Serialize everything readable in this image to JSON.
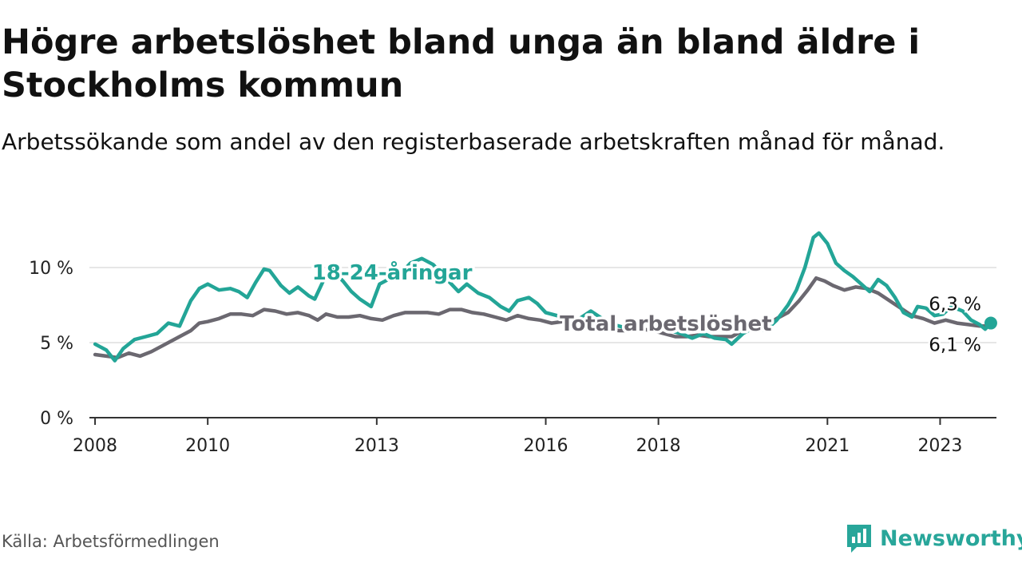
{
  "title": "Högre arbetslöshet bland unga än bland äldre i Stockholms kommun",
  "subtitle": "Arbetssökande som andel av den registerbaserade arbetskraften månad för månad.",
  "source": "Källa: Arbetsförmedlingen",
  "brand": "Newsworthy",
  "colors": {
    "young": "#23a597",
    "total": "#6b6870",
    "axis": "#333333",
    "grid": "#dddddd"
  },
  "chart_data": {
    "type": "line",
    "title": "Högre arbetslöshet bland unga än bland äldre i Stockholms kommun",
    "xlabel": "",
    "ylabel": "",
    "xlim": [
      2007.9,
      2024.0
    ],
    "ylim": [
      0,
      12.5
    ],
    "x_ticks": [
      {
        "value": 2008,
        "label": "2008"
      },
      {
        "value": 2010,
        "label": "2010"
      },
      {
        "value": 2013,
        "label": "2013"
      },
      {
        "value": 2016,
        "label": "2016"
      },
      {
        "value": 2018,
        "label": "2018"
      },
      {
        "value": 2021,
        "label": "2021"
      },
      {
        "value": 2023,
        "label": "2023"
      }
    ],
    "y_ticks": [
      {
        "value": 0,
        "label": "0 %"
      },
      {
        "value": 5,
        "label": "5 %"
      },
      {
        "value": 10,
        "label": "10 %"
      }
    ],
    "series": [
      {
        "name": "18-24-åringar",
        "label": "18-24-åringar",
        "color": "#23a597",
        "end_label": "6,3 %",
        "points": [
          [
            2008.0,
            4.9
          ],
          [
            2008.2,
            4.5
          ],
          [
            2008.35,
            3.8
          ],
          [
            2008.5,
            4.6
          ],
          [
            2008.7,
            5.2
          ],
          [
            2008.9,
            5.4
          ],
          [
            2009.1,
            5.6
          ],
          [
            2009.3,
            6.3
          ],
          [
            2009.5,
            6.1
          ],
          [
            2009.7,
            7.8
          ],
          [
            2009.85,
            8.6
          ],
          [
            2010.0,
            8.9
          ],
          [
            2010.2,
            8.5
          ],
          [
            2010.4,
            8.6
          ],
          [
            2010.55,
            8.4
          ],
          [
            2010.7,
            8.0
          ],
          [
            2010.85,
            9.0
          ],
          [
            2011.0,
            9.9
          ],
          [
            2011.1,
            9.8
          ],
          [
            2011.3,
            8.8
          ],
          [
            2011.45,
            8.3
          ],
          [
            2011.6,
            8.7
          ],
          [
            2011.8,
            8.1
          ],
          [
            2011.9,
            7.9
          ],
          [
            2012.05,
            9.1
          ],
          [
            2012.2,
            9.9
          ],
          [
            2012.4,
            9.1
          ],
          [
            2012.55,
            8.4
          ],
          [
            2012.7,
            7.9
          ],
          [
            2012.9,
            7.4
          ],
          [
            2013.05,
            8.9
          ],
          [
            2013.25,
            9.3
          ],
          [
            2013.45,
            9.7
          ],
          [
            2013.6,
            10.3
          ],
          [
            2013.8,
            10.6
          ],
          [
            2014.0,
            10.2
          ],
          [
            2014.2,
            9.4
          ],
          [
            2014.45,
            8.4
          ],
          [
            2014.6,
            8.9
          ],
          [
            2014.8,
            8.3
          ],
          [
            2015.0,
            8.0
          ],
          [
            2015.2,
            7.4
          ],
          [
            2015.35,
            7.1
          ],
          [
            2015.5,
            7.8
          ],
          [
            2015.7,
            8.0
          ],
          [
            2015.85,
            7.6
          ],
          [
            2016.0,
            7.0
          ],
          [
            2016.2,
            6.8
          ],
          [
            2016.4,
            6.5
          ],
          [
            2016.6,
            6.6
          ],
          [
            2016.8,
            7.1
          ],
          [
            2017.0,
            6.6
          ],
          [
            2017.2,
            6.2
          ],
          [
            2017.4,
            6.0
          ],
          [
            2017.6,
            6.2
          ],
          [
            2017.8,
            6.6
          ],
          [
            2018.0,
            6.2
          ],
          [
            2018.2,
            5.8
          ],
          [
            2018.4,
            5.6
          ],
          [
            2018.6,
            5.3
          ],
          [
            2018.8,
            5.6
          ],
          [
            2019.0,
            5.3
          ],
          [
            2019.2,
            5.2
          ],
          [
            2019.3,
            4.9
          ],
          [
            2019.5,
            5.6
          ],
          [
            2019.7,
            6.0
          ],
          [
            2019.9,
            5.8
          ],
          [
            2020.1,
            6.5
          ],
          [
            2020.3,
            7.5
          ],
          [
            2020.45,
            8.5
          ],
          [
            2020.6,
            10.0
          ],
          [
            2020.75,
            12.0
          ],
          [
            2020.85,
            12.3
          ],
          [
            2021.0,
            11.6
          ],
          [
            2021.15,
            10.3
          ],
          [
            2021.3,
            9.8
          ],
          [
            2021.45,
            9.4
          ],
          [
            2021.6,
            8.9
          ],
          [
            2021.75,
            8.4
          ],
          [
            2021.9,
            9.2
          ],
          [
            2022.05,
            8.8
          ],
          [
            2022.2,
            8.0
          ],
          [
            2022.35,
            7.0
          ],
          [
            2022.5,
            6.7
          ],
          [
            2022.6,
            7.4
          ],
          [
            2022.75,
            7.3
          ],
          [
            2022.9,
            6.8
          ],
          [
            2023.05,
            6.9
          ],
          [
            2023.2,
            7.4
          ],
          [
            2023.4,
            7.1
          ],
          [
            2023.55,
            6.5
          ],
          [
            2023.7,
            6.2
          ],
          [
            2023.8,
            5.9
          ],
          [
            2023.9,
            6.3
          ]
        ]
      },
      {
        "name": "Total arbetslöshet",
        "label": "Total arbetslöshet",
        "color": "#6b6870",
        "end_label": "6,1 %",
        "points": [
          [
            2008.0,
            4.2
          ],
          [
            2008.2,
            4.1
          ],
          [
            2008.4,
            4.0
          ],
          [
            2008.6,
            4.3
          ],
          [
            2008.8,
            4.1
          ],
          [
            2009.0,
            4.4
          ],
          [
            2009.2,
            4.8
          ],
          [
            2009.5,
            5.4
          ],
          [
            2009.7,
            5.8
          ],
          [
            2009.85,
            6.3
          ],
          [
            2010.0,
            6.4
          ],
          [
            2010.2,
            6.6
          ],
          [
            2010.4,
            6.9
          ],
          [
            2010.6,
            6.9
          ],
          [
            2010.8,
            6.8
          ],
          [
            2011.0,
            7.2
          ],
          [
            2011.2,
            7.1
          ],
          [
            2011.4,
            6.9
          ],
          [
            2011.6,
            7.0
          ],
          [
            2011.8,
            6.8
          ],
          [
            2011.95,
            6.5
          ],
          [
            2012.1,
            6.9
          ],
          [
            2012.3,
            6.7
          ],
          [
            2012.5,
            6.7
          ],
          [
            2012.7,
            6.8
          ],
          [
            2012.9,
            6.6
          ],
          [
            2013.1,
            6.5
          ],
          [
            2013.3,
            6.8
          ],
          [
            2013.5,
            7.0
          ],
          [
            2013.7,
            7.0
          ],
          [
            2013.9,
            7.0
          ],
          [
            2014.1,
            6.9
          ],
          [
            2014.3,
            7.2
          ],
          [
            2014.5,
            7.2
          ],
          [
            2014.7,
            7.0
          ],
          [
            2014.9,
            6.9
          ],
          [
            2015.1,
            6.7
          ],
          [
            2015.3,
            6.5
          ],
          [
            2015.5,
            6.8
          ],
          [
            2015.7,
            6.6
          ],
          [
            2015.9,
            6.5
          ],
          [
            2016.1,
            6.3
          ],
          [
            2016.3,
            6.4
          ],
          [
            2016.5,
            6.3
          ],
          [
            2016.7,
            6.2
          ],
          [
            2016.9,
            6.1
          ],
          [
            2017.1,
            5.9
          ],
          [
            2017.3,
            5.8
          ],
          [
            2017.5,
            5.8
          ],
          [
            2017.7,
            5.9
          ],
          [
            2017.9,
            5.8
          ],
          [
            2018.1,
            5.6
          ],
          [
            2018.3,
            5.4
          ],
          [
            2018.5,
            5.4
          ],
          [
            2018.7,
            5.5
          ],
          [
            2018.9,
            5.4
          ],
          [
            2019.1,
            5.4
          ],
          [
            2019.3,
            5.4
          ],
          [
            2019.5,
            5.8
          ],
          [
            2019.7,
            6.0
          ],
          [
            2019.9,
            6.1
          ],
          [
            2020.1,
            6.6
          ],
          [
            2020.3,
            7.0
          ],
          [
            2020.5,
            7.8
          ],
          [
            2020.65,
            8.5
          ],
          [
            2020.8,
            9.3
          ],
          [
            2020.95,
            9.1
          ],
          [
            2021.1,
            8.8
          ],
          [
            2021.3,
            8.5
          ],
          [
            2021.5,
            8.7
          ],
          [
            2021.7,
            8.6
          ],
          [
            2021.9,
            8.3
          ],
          [
            2022.1,
            7.8
          ],
          [
            2022.3,
            7.3
          ],
          [
            2022.5,
            6.8
          ],
          [
            2022.7,
            6.6
          ],
          [
            2022.9,
            6.3
          ],
          [
            2023.1,
            6.5
          ],
          [
            2023.3,
            6.3
          ],
          [
            2023.5,
            6.2
          ],
          [
            2023.7,
            6.1
          ],
          [
            2023.9,
            6.1
          ]
        ]
      }
    ]
  }
}
